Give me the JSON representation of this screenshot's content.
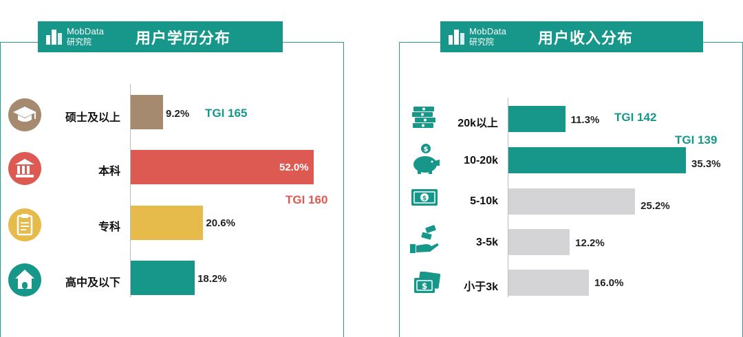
{
  "brand": {
    "name": "MobData",
    "sub": "研究院"
  },
  "colors": {
    "teal": "#17968a",
    "brown": "#a58a6f",
    "red": "#dc5a51",
    "yellow": "#e7bb4b",
    "grey": "#d4d4d6"
  },
  "chart_data": [
    {
      "type": "bar",
      "orientation": "horizontal",
      "title": "用户学历分布",
      "categories": [
        "硕士及以上",
        "本科",
        "专科",
        "高中及以下"
      ],
      "values": [
        9.2,
        52.0,
        20.6,
        18.2
      ],
      "value_labels": [
        "9.2%",
        "52.0%",
        "20.6%",
        "18.2%"
      ],
      "bar_colors": [
        "#a58a6f",
        "#dc5a51",
        "#e7bb4b",
        "#17968a"
      ],
      "icons": [
        "graduation-cap-icon",
        "bank-building-icon",
        "clipboard-icon",
        "house-icon"
      ],
      "annotations": [
        {
          "category": "硕士及以上",
          "text": "TGI 165",
          "color": "#17968a"
        },
        {
          "category": "本科",
          "text": "TGI 160",
          "color": "#dc5a51"
        }
      ],
      "unit": "%"
    },
    {
      "type": "bar",
      "orientation": "horizontal",
      "title": "用户收入分布",
      "categories": [
        "20k以上",
        "10-20k",
        "5-10k",
        "3-5k",
        "小于3k"
      ],
      "values": [
        11.3,
        35.3,
        25.2,
        12.2,
        16.0
      ],
      "value_labels": [
        "11.3%",
        "35.3%",
        "25.2%",
        "12.2%",
        "16.0%"
      ],
      "bar_colors": [
        "#17968a",
        "#17968a",
        "#d4d4d6",
        "#d4d4d6",
        "#d4d4d6"
      ],
      "icons": [
        "money-stack-icon",
        "piggy-bank-icon",
        "banknote-icon",
        "hand-coins-icon",
        "dollar-bills-icon"
      ],
      "annotations": [
        {
          "category": "20k以上",
          "text": "TGI 142",
          "color": "#17968a"
        },
        {
          "category": "10-20k",
          "text": "TGI 139",
          "color": "#17968a"
        }
      ],
      "unit": "%"
    }
  ]
}
